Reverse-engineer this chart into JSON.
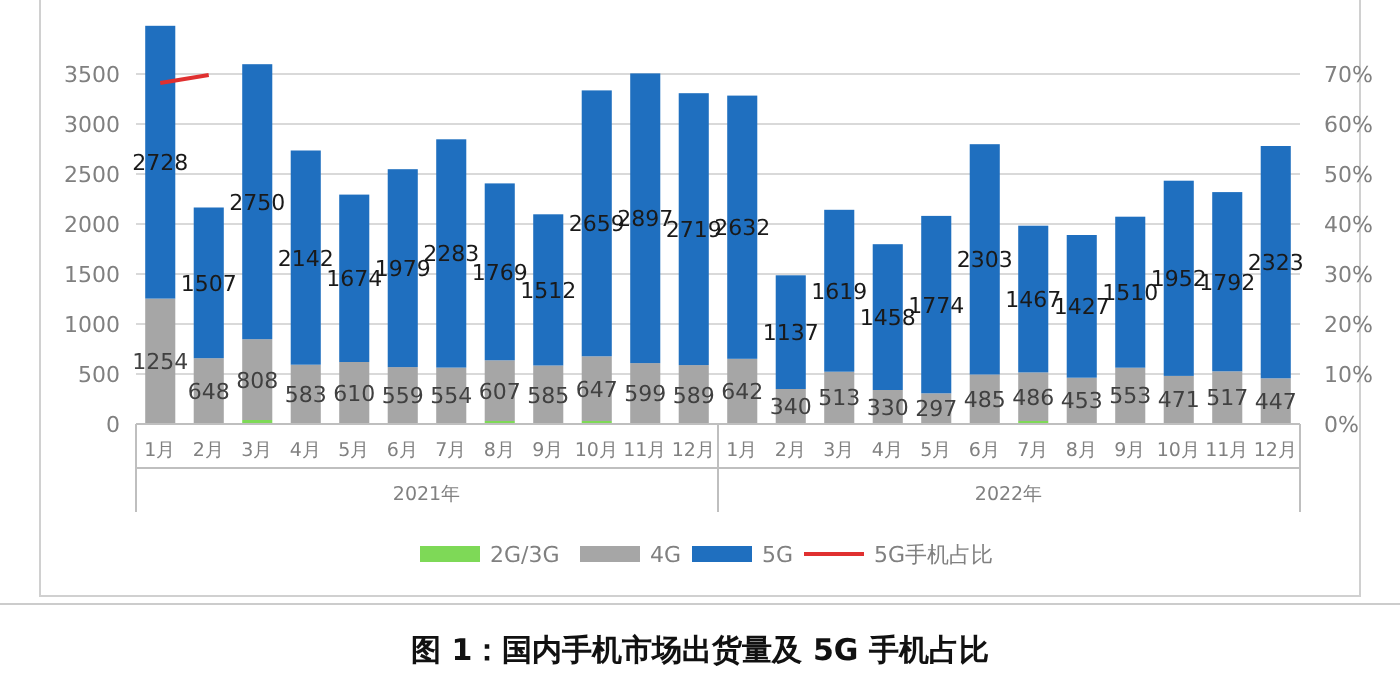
{
  "chart_data": {
    "type": "bar",
    "stacked": true,
    "title": "图 1：国内手机市场出货量及 5G 手机占比",
    "categories": [
      "1月",
      "2月",
      "3月",
      "4月",
      "5月",
      "6月",
      "7月",
      "8月",
      "9月",
      "10月",
      "11月",
      "12月",
      "1月",
      "2月",
      "3月",
      "4月",
      "5月",
      "6月",
      "7月",
      "8月",
      "9月",
      "10月",
      "11月",
      "12月"
    ],
    "annotations": [
      "2021年",
      "2022年"
    ],
    "series": [
      {
        "name": "2G/3G",
        "color": "#7ed957",
        "values": [
          null,
          10,
          40,
          10,
          10,
          10,
          10,
          30,
          null,
          30,
          10,
          null,
          10,
          10,
          10,
          10,
          10,
          10,
          30,
          10,
          10,
          10,
          10,
          10
        ]
      },
      {
        "name": "4G",
        "color": "#a6a6a6",
        "values": [
          1254,
          648,
          808,
          583,
          610,
          559,
          554,
          607,
          585,
          647,
          599,
          589,
          642,
          340,
          513,
          330,
          297,
          485,
          486,
          453,
          553,
          471,
          517,
          447
        ],
        "value_labels": [
          "1254",
          "648",
          "808",
          "583",
          "610",
          "559",
          "554",
          "607",
          "585",
          "647",
          "599",
          "589",
          "642",
          "340",
          "513",
          "330",
          "297",
          "485",
          "486",
          "453",
          "553",
          "471",
          "517",
          "447"
        ]
      },
      {
        "name": "5G",
        "color": "#1f6fbf",
        "values": [
          2728,
          1507,
          2750,
          2142,
          1674,
          1979,
          2283,
          1769,
          1512,
          2659,
          2897,
          2719,
          2632,
          1137,
          1619,
          1458,
          1774,
          2303,
          1467,
          1427,
          1510,
          1952,
          1792,
          2323
        ],
        "value_labels": [
          "2728",
          "1507",
          "2750",
          "2142",
          "1674",
          "1979",
          "2283",
          "1769",
          "1512",
          "2659",
          "2897",
          "2719",
          "2632",
          "1137",
          "1619",
          "1458",
          "1774",
          "2303",
          "1467",
          "1427",
          "1510",
          "1952",
          "1792",
          "2323"
        ]
      },
      {
        "name": "5G手机占比",
        "type": "line",
        "axis": "y2",
        "color": "#e03030",
        "values": [
          68.2,
          69.8,
          null,
          null,
          null,
          null,
          null,
          null,
          null,
          null,
          null,
          null,
          null,
          null,
          null,
          null,
          null,
          null,
          null,
          null,
          null,
          null,
          null,
          null
        ]
      }
    ],
    "ylim": [
      0,
      4000
    ],
    "yticks": [
      0,
      500,
      1000,
      1500,
      2000,
      2500,
      3000,
      3500
    ],
    "y2lim": [
      0,
      80
    ],
    "y2ticks": [
      {
        "value": 0,
        "label": "0%"
      },
      {
        "value": 10,
        "label": "10%"
      },
      {
        "value": 20,
        "label": "20%"
      },
      {
        "value": 30,
        "label": "30%"
      },
      {
        "value": 40,
        "label": "40%"
      },
      {
        "value": 50,
        "label": "50%"
      },
      {
        "value": 60,
        "label": "60%"
      },
      {
        "value": 70,
        "label": "70%"
      }
    ],
    "grid": "y",
    "legend": "bottom",
    "marker": "none"
  }
}
